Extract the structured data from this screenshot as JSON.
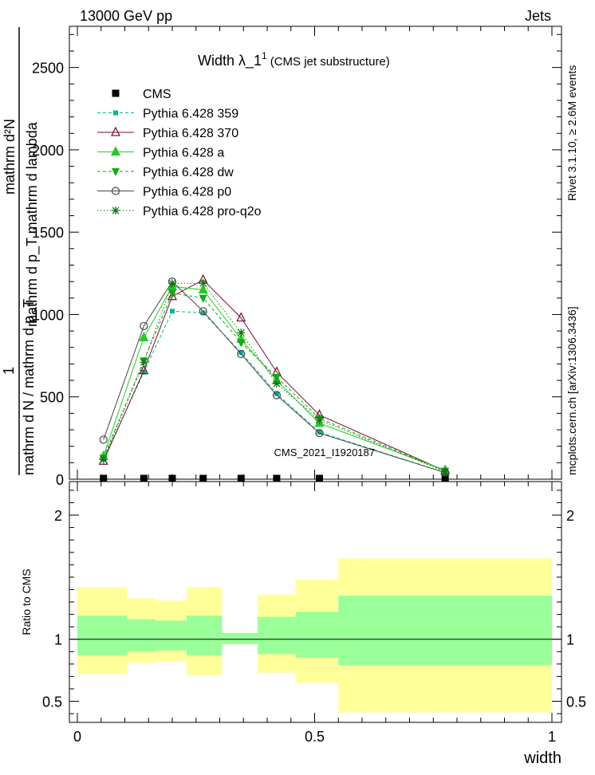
{
  "header": {
    "left": "13000 GeV pp",
    "right": "Jets"
  },
  "side_labels": {
    "rivet": "Rivet 3.1.10, ≥ 2.6M events",
    "mcplots": "mcplots.cern.ch [arXiv:1306.3436]"
  },
  "watermark": "CMS_2021_I1920187",
  "colors": {
    "cms": "#000000",
    "p359": "#00b894",
    "p370": "#7a0a2a",
    "pa": "#22cc22",
    "pdw": "#11aa11",
    "pp0": "#444444",
    "pq2o": "#117711",
    "band_inner": "#99ff99",
    "band_outer": "#ffff99"
  },
  "chart_data": [
    {
      "type": "line",
      "title": "Width λ_1¹ (CMS jet substructure)",
      "title_main": "Width λ_1",
      "title_sup": "1",
      "title_sub": "(CMS jet substructure)",
      "ylabel_numerator": "mathrm d²N",
      "ylabel_numerator_sup": "2",
      "ylabel_top": "mathrm d p_T mathrm d lambda",
      "ylabel_bottom": "mathrm d N / mathrm d p_T",
      "ylabel_prefix": "1",
      "xlim": [
        0,
        1
      ],
      "ylim": [
        0,
        2750
      ],
      "yticks": [
        0,
        500,
        1000,
        1500,
        2000,
        2500
      ],
      "ytick_labels": [
        "0",
        "500",
        "1000",
        "1500",
        "2000",
        "2500"
      ],
      "x": [
        0.055,
        0.14,
        0.2,
        0.265,
        0.345,
        0.42,
        0.51,
        0.775
      ],
      "series": [
        {
          "name": "CMS",
          "key": "cms",
          "style": "data",
          "values": [
            0,
            0,
            0,
            0,
            0,
            0,
            0,
            0
          ]
        },
        {
          "name": "Pythia 6.428 359",
          "key": "p359",
          "style": "dashed",
          "marker": "square",
          "values": [
            120,
            650,
            1020,
            1010,
            770,
            520,
            285,
            40
          ]
        },
        {
          "name": "Pythia 6.428 370",
          "key": "p370",
          "style": "solid",
          "marker": "triangle-open",
          "values": [
            110,
            660,
            1110,
            1210,
            980,
            650,
            390,
            50
          ]
        },
        {
          "name": "Pythia 6.428 a",
          "key": "pa",
          "style": "solid",
          "marker": "triangle",
          "values": [
            140,
            860,
            1170,
            1150,
            850,
            600,
            340,
            55
          ]
        },
        {
          "name": "Pythia 6.428 dw",
          "key": "pdw",
          "style": "dashed",
          "marker": "triangle-down",
          "values": [
            130,
            720,
            1130,
            1100,
            830,
            620,
            370,
            50
          ]
        },
        {
          "name": "Pythia 6.428 p0",
          "key": "pp0",
          "style": "solid",
          "marker": "circle-open",
          "values": [
            240,
            930,
            1200,
            1020,
            760,
            510,
            280,
            40
          ]
        },
        {
          "name": "Pythia 6.428 pro-q2o",
          "key": "pq2o",
          "style": "dotted",
          "marker": "star",
          "values": [
            120,
            710,
            1190,
            1190,
            890,
            580,
            360,
            45
          ]
        }
      ]
    },
    {
      "type": "area",
      "ylabel": "Ratio to CMS",
      "xlabel": "width",
      "xlim": [
        0,
        1
      ],
      "ylim": [
        0.33,
        2.27
      ],
      "xticks": [
        0,
        0.5,
        1
      ],
      "xtick_labels": [
        "0",
        "0.5",
        "1"
      ],
      "yticks": [
        0.5,
        1,
        2
      ],
      "ytick_labels": [
        "0.5",
        "1",
        "2"
      ],
      "reference": 1,
      "bins": [
        {
          "x0": 0.0,
          "x1": 0.105,
          "inner": [
            0.87,
            1.19
          ],
          "outer": [
            0.72,
            1.42
          ]
        },
        {
          "x0": 0.105,
          "x1": 0.165,
          "inner": [
            0.9,
            1.16
          ],
          "outer": [
            0.81,
            1.33
          ]
        },
        {
          "x0": 0.165,
          "x1": 0.23,
          "inner": [
            0.91,
            1.15
          ],
          "outer": [
            0.82,
            1.31
          ]
        },
        {
          "x0": 0.23,
          "x1": 0.305,
          "inner": [
            0.87,
            1.19
          ],
          "outer": [
            0.71,
            1.42
          ]
        },
        {
          "x0": 0.305,
          "x1": 0.38,
          "inner": [
            0.96,
            1.05
          ],
          "outer": [
            0.96,
            1.05
          ]
        },
        {
          "x0": 0.38,
          "x1": 0.46,
          "inner": [
            0.88,
            1.18
          ],
          "outer": [
            0.73,
            1.36
          ]
        },
        {
          "x0": 0.46,
          "x1": 0.55,
          "inner": [
            0.85,
            1.22
          ],
          "outer": [
            0.65,
            1.48
          ]
        },
        {
          "x0": 0.55,
          "x1": 1.0,
          "inner": [
            0.79,
            1.35
          ],
          "outer": [
            0.41,
            1.65
          ]
        }
      ]
    }
  ]
}
